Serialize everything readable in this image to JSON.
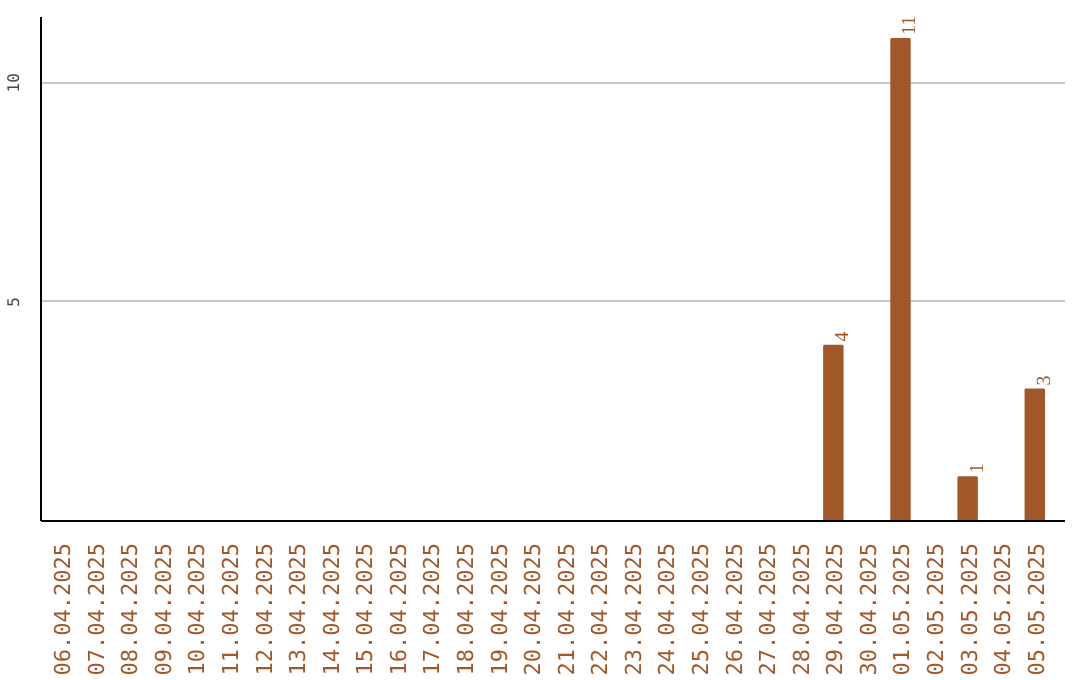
{
  "chart_data": {
    "type": "bar",
    "categories": [
      "06.04.2025",
      "07.04.2025",
      "08.04.2025",
      "09.04.2025",
      "10.04.2025",
      "11.04.2025",
      "12.04.2025",
      "13.04.2025",
      "14.04.2025",
      "15.04.2025",
      "16.04.2025",
      "17.04.2025",
      "18.04.2025",
      "19.04.2025",
      "20.04.2025",
      "21.04.2025",
      "22.04.2025",
      "23.04.2025",
      "24.04.2025",
      "25.04.2025",
      "26.04.2025",
      "27.04.2025",
      "28.04.2025",
      "29.04.2025",
      "30.04.2025",
      "01.05.2025",
      "02.05.2025",
      "03.05.2025",
      "04.05.2025",
      "05.05.2025"
    ],
    "values": [
      0,
      0,
      0,
      0,
      0,
      0,
      0,
      0,
      0,
      0,
      0,
      0,
      0,
      0,
      0,
      0,
      0,
      0,
      0,
      0,
      0,
      0,
      0,
      4,
      0,
      11,
      0,
      1,
      0,
      3
    ],
    "value_labels": [
      null,
      null,
      null,
      null,
      null,
      null,
      null,
      null,
      null,
      null,
      null,
      null,
      null,
      null,
      null,
      null,
      null,
      null,
      null,
      null,
      null,
      null,
      null,
      "4",
      null,
      "11",
      null,
      "1",
      null,
      "3"
    ],
    "color": "#a0582a",
    "ylim": [
      0,
      11.5
    ],
    "yticks": [
      5,
      10
    ],
    "grid": "y"
  }
}
